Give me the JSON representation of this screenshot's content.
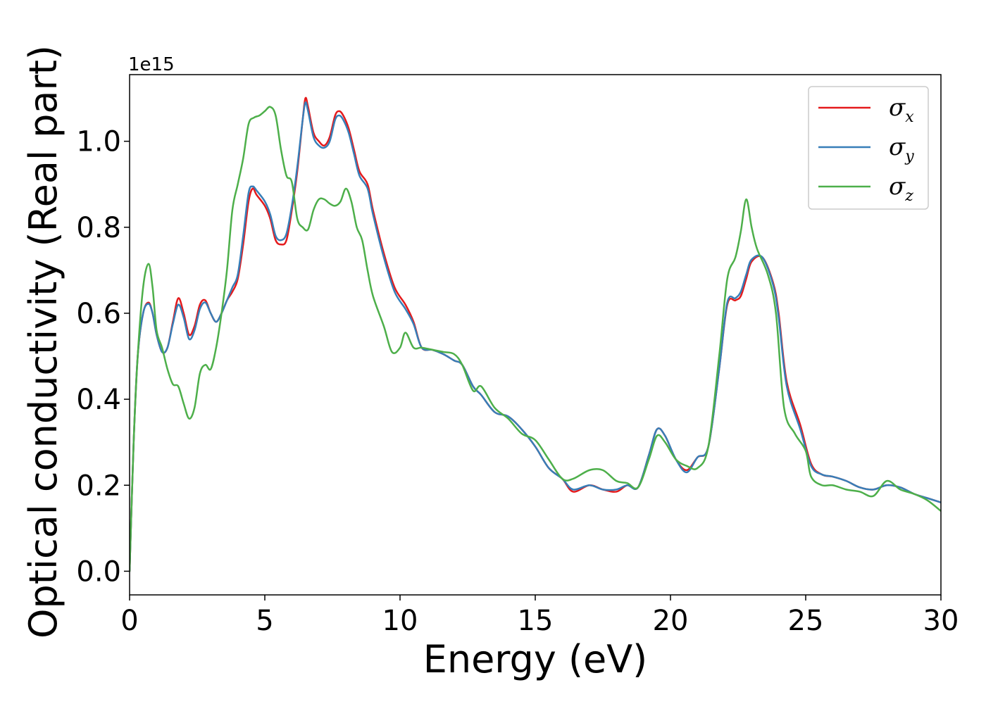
{
  "chart_data": {
    "type": "line",
    "title": "",
    "xlabel": "Energy (eV)",
    "ylabel": "Optical conductivity (Real part)",
    "y_offset_label": "1e15",
    "xlim": [
      0,
      30
    ],
    "ylim": [
      -0.055,
      1.155
    ],
    "x_ticks": [
      0,
      5,
      10,
      15,
      20,
      25,
      30
    ],
    "x_tick_labels": [
      "0",
      "5",
      "10",
      "15",
      "20",
      "25",
      "30"
    ],
    "y_ticks": [
      0.0,
      0.2,
      0.4,
      0.6,
      0.8,
      1.0
    ],
    "y_tick_labels": [
      "0.0",
      "0.2",
      "0.4",
      "0.6",
      "0.8",
      "1.0"
    ],
    "grid": false,
    "legend_position": "top-right",
    "series": [
      {
        "legend_symbol": "σ",
        "legend_subscript": "x",
        "color": "#e41a1c",
        "points": [
          [
            0,
            0
          ],
          [
            0.15,
            0.3
          ],
          [
            0.3,
            0.5
          ],
          [
            0.5,
            0.6
          ],
          [
            0.7,
            0.625
          ],
          [
            0.85,
            0.6
          ],
          [
            1.0,
            0.55
          ],
          [
            1.2,
            0.51
          ],
          [
            1.4,
            0.52
          ],
          [
            1.6,
            0.58
          ],
          [
            1.8,
            0.635
          ],
          [
            2.0,
            0.6
          ],
          [
            2.2,
            0.55
          ],
          [
            2.4,
            0.57
          ],
          [
            2.6,
            0.62
          ],
          [
            2.8,
            0.63
          ],
          [
            3.0,
            0.6
          ],
          [
            3.2,
            0.58
          ],
          [
            3.4,
            0.6
          ],
          [
            3.6,
            0.63
          ],
          [
            3.8,
            0.65
          ],
          [
            4.0,
            0.68
          ],
          [
            4.2,
            0.76
          ],
          [
            4.4,
            0.86
          ],
          [
            4.55,
            0.89
          ],
          [
            4.7,
            0.875
          ],
          [
            5.0,
            0.85
          ],
          [
            5.2,
            0.82
          ],
          [
            5.4,
            0.77
          ],
          [
            5.6,
            0.76
          ],
          [
            5.8,
            0.77
          ],
          [
            6.0,
            0.84
          ],
          [
            6.2,
            0.93
          ],
          [
            6.4,
            1.05
          ],
          [
            6.5,
            1.1
          ],
          [
            6.6,
            1.08
          ],
          [
            6.8,
            1.02
          ],
          [
            7.0,
            1.0
          ],
          [
            7.2,
            0.99
          ],
          [
            7.4,
            1.01
          ],
          [
            7.6,
            1.06
          ],
          [
            7.75,
            1.07
          ],
          [
            7.9,
            1.06
          ],
          [
            8.1,
            1.03
          ],
          [
            8.3,
            0.98
          ],
          [
            8.5,
            0.93
          ],
          [
            8.8,
            0.9
          ],
          [
            9.0,
            0.84
          ],
          [
            9.4,
            0.74
          ],
          [
            9.8,
            0.66
          ],
          [
            10.2,
            0.62
          ],
          [
            10.5,
            0.58
          ],
          [
            10.8,
            0.52
          ],
          [
            11.2,
            0.515
          ],
          [
            11.6,
            0.505
          ],
          [
            12.0,
            0.49
          ],
          [
            12.3,
            0.48
          ],
          [
            12.7,
            0.43
          ],
          [
            13.0,
            0.41
          ],
          [
            13.5,
            0.37
          ],
          [
            14.0,
            0.36
          ],
          [
            14.5,
            0.33
          ],
          [
            15.0,
            0.29
          ],
          [
            15.5,
            0.24
          ],
          [
            16.0,
            0.215
          ],
          [
            16.4,
            0.185
          ],
          [
            17.0,
            0.2
          ],
          [
            17.5,
            0.19
          ],
          [
            18.0,
            0.185
          ],
          [
            18.4,
            0.2
          ],
          [
            18.8,
            0.195
          ],
          [
            19.2,
            0.27
          ],
          [
            19.5,
            0.33
          ],
          [
            19.8,
            0.315
          ],
          [
            20.2,
            0.26
          ],
          [
            20.6,
            0.235
          ],
          [
            21.0,
            0.265
          ],
          [
            21.4,
            0.29
          ],
          [
            21.8,
            0.47
          ],
          [
            22.1,
            0.62
          ],
          [
            22.4,
            0.63
          ],
          [
            22.6,
            0.64
          ],
          [
            22.8,
            0.68
          ],
          [
            23.0,
            0.72
          ],
          [
            23.4,
            0.73
          ],
          [
            23.8,
            0.67
          ],
          [
            24.0,
            0.6
          ],
          [
            24.3,
            0.44
          ],
          [
            24.8,
            0.34
          ],
          [
            25.2,
            0.25
          ],
          [
            25.6,
            0.225
          ],
          [
            26.0,
            0.22
          ],
          [
            26.5,
            0.21
          ],
          [
            27.0,
            0.195
          ],
          [
            27.5,
            0.19
          ],
          [
            28.0,
            0.2
          ],
          [
            28.5,
            0.195
          ],
          [
            29.0,
            0.18
          ],
          [
            29.5,
            0.17
          ],
          [
            30.0,
            0.16
          ]
        ]
      },
      {
        "legend_symbol": "σ",
        "legend_subscript": "y",
        "color": "#377eb8",
        "points": [
          [
            0,
            0
          ],
          [
            0.15,
            0.3
          ],
          [
            0.3,
            0.5
          ],
          [
            0.5,
            0.6
          ],
          [
            0.7,
            0.622
          ],
          [
            0.85,
            0.6
          ],
          [
            1.0,
            0.55
          ],
          [
            1.2,
            0.51
          ],
          [
            1.4,
            0.52
          ],
          [
            1.6,
            0.575
          ],
          [
            1.8,
            0.62
          ],
          [
            2.0,
            0.59
          ],
          [
            2.2,
            0.54
          ],
          [
            2.4,
            0.56
          ],
          [
            2.6,
            0.61
          ],
          [
            2.8,
            0.625
          ],
          [
            3.0,
            0.6
          ],
          [
            3.2,
            0.58
          ],
          [
            3.4,
            0.6
          ],
          [
            3.6,
            0.63
          ],
          [
            3.8,
            0.66
          ],
          [
            4.0,
            0.69
          ],
          [
            4.2,
            0.78
          ],
          [
            4.4,
            0.88
          ],
          [
            4.55,
            0.895
          ],
          [
            4.7,
            0.885
          ],
          [
            5.0,
            0.86
          ],
          [
            5.2,
            0.83
          ],
          [
            5.4,
            0.78
          ],
          [
            5.6,
            0.77
          ],
          [
            5.8,
            0.785
          ],
          [
            6.0,
            0.85
          ],
          [
            6.2,
            0.94
          ],
          [
            6.4,
            1.05
          ],
          [
            6.5,
            1.09
          ],
          [
            6.6,
            1.07
          ],
          [
            6.8,
            1.01
          ],
          [
            7.0,
            0.99
          ],
          [
            7.2,
            0.985
          ],
          [
            7.4,
            1.0
          ],
          [
            7.6,
            1.05
          ],
          [
            7.75,
            1.06
          ],
          [
            7.9,
            1.05
          ],
          [
            8.1,
            1.02
          ],
          [
            8.3,
            0.97
          ],
          [
            8.5,
            0.92
          ],
          [
            8.8,
            0.89
          ],
          [
            9.0,
            0.83
          ],
          [
            9.4,
            0.73
          ],
          [
            9.8,
            0.65
          ],
          [
            10.2,
            0.61
          ],
          [
            10.5,
            0.575
          ],
          [
            10.8,
            0.52
          ],
          [
            11.2,
            0.515
          ],
          [
            11.6,
            0.505
          ],
          [
            12.0,
            0.49
          ],
          [
            12.3,
            0.48
          ],
          [
            12.7,
            0.43
          ],
          [
            13.0,
            0.41
          ],
          [
            13.5,
            0.37
          ],
          [
            14.0,
            0.36
          ],
          [
            14.5,
            0.33
          ],
          [
            15.0,
            0.29
          ],
          [
            15.5,
            0.24
          ],
          [
            16.0,
            0.215
          ],
          [
            16.4,
            0.19
          ],
          [
            17.0,
            0.2
          ],
          [
            17.5,
            0.19
          ],
          [
            18.0,
            0.19
          ],
          [
            18.4,
            0.2
          ],
          [
            18.8,
            0.195
          ],
          [
            19.2,
            0.27
          ],
          [
            19.5,
            0.33
          ],
          [
            19.8,
            0.315
          ],
          [
            20.2,
            0.26
          ],
          [
            20.6,
            0.23
          ],
          [
            21.0,
            0.265
          ],
          [
            21.4,
            0.29
          ],
          [
            21.8,
            0.47
          ],
          [
            22.1,
            0.625
          ],
          [
            22.4,
            0.635
          ],
          [
            22.6,
            0.65
          ],
          [
            22.8,
            0.69
          ],
          [
            23.0,
            0.725
          ],
          [
            23.4,
            0.73
          ],
          [
            23.8,
            0.665
          ],
          [
            24.0,
            0.59
          ],
          [
            24.3,
            0.43
          ],
          [
            24.8,
            0.33
          ],
          [
            25.2,
            0.245
          ],
          [
            25.6,
            0.225
          ],
          [
            26.0,
            0.22
          ],
          [
            26.5,
            0.21
          ],
          [
            27.0,
            0.195
          ],
          [
            27.5,
            0.19
          ],
          [
            28.0,
            0.2
          ],
          [
            28.5,
            0.195
          ],
          [
            29.0,
            0.18
          ],
          [
            29.5,
            0.17
          ],
          [
            30.0,
            0.16
          ]
        ]
      },
      {
        "legend_symbol": "σ",
        "legend_subscript": "z",
        "color": "#4daf4a",
        "points": [
          [
            0,
            0
          ],
          [
            0.15,
            0.3
          ],
          [
            0.3,
            0.5
          ],
          [
            0.5,
            0.66
          ],
          [
            0.7,
            0.715
          ],
          [
            0.85,
            0.66
          ],
          [
            1.0,
            0.56
          ],
          [
            1.2,
            0.52
          ],
          [
            1.4,
            0.47
          ],
          [
            1.6,
            0.435
          ],
          [
            1.8,
            0.43
          ],
          [
            2.0,
            0.39
          ],
          [
            2.2,
            0.355
          ],
          [
            2.4,
            0.38
          ],
          [
            2.6,
            0.46
          ],
          [
            2.8,
            0.48
          ],
          [
            3.0,
            0.47
          ],
          [
            3.2,
            0.52
          ],
          [
            3.4,
            0.6
          ],
          [
            3.6,
            0.7
          ],
          [
            3.8,
            0.84
          ],
          [
            4.0,
            0.9
          ],
          [
            4.2,
            0.96
          ],
          [
            4.4,
            1.04
          ],
          [
            4.6,
            1.055
          ],
          [
            4.8,
            1.06
          ],
          [
            5.0,
            1.07
          ],
          [
            5.2,
            1.08
          ],
          [
            5.4,
            1.06
          ],
          [
            5.6,
            0.98
          ],
          [
            5.8,
            0.92
          ],
          [
            6.0,
            0.905
          ],
          [
            6.2,
            0.82
          ],
          [
            6.4,
            0.8
          ],
          [
            6.6,
            0.795
          ],
          [
            6.8,
            0.84
          ],
          [
            7.0,
            0.865
          ],
          [
            7.2,
            0.865
          ],
          [
            7.4,
            0.855
          ],
          [
            7.6,
            0.85
          ],
          [
            7.8,
            0.86
          ],
          [
            8.0,
            0.89
          ],
          [
            8.2,
            0.86
          ],
          [
            8.4,
            0.8
          ],
          [
            8.6,
            0.77
          ],
          [
            8.8,
            0.7
          ],
          [
            9.0,
            0.64
          ],
          [
            9.4,
            0.57
          ],
          [
            9.7,
            0.51
          ],
          [
            10.0,
            0.52
          ],
          [
            10.2,
            0.555
          ],
          [
            10.5,
            0.52
          ],
          [
            10.8,
            0.52
          ],
          [
            11.2,
            0.515
          ],
          [
            11.6,
            0.51
          ],
          [
            12.0,
            0.505
          ],
          [
            12.3,
            0.48
          ],
          [
            12.7,
            0.42
          ],
          [
            13.0,
            0.43
          ],
          [
            13.5,
            0.38
          ],
          [
            14.0,
            0.355
          ],
          [
            14.5,
            0.32
          ],
          [
            15.0,
            0.305
          ],
          [
            15.5,
            0.26
          ],
          [
            16.0,
            0.215
          ],
          [
            16.4,
            0.215
          ],
          [
            17.0,
            0.235
          ],
          [
            17.5,
            0.235
          ],
          [
            18.0,
            0.21
          ],
          [
            18.4,
            0.205
          ],
          [
            18.8,
            0.195
          ],
          [
            19.2,
            0.26
          ],
          [
            19.5,
            0.315
          ],
          [
            19.8,
            0.3
          ],
          [
            20.2,
            0.26
          ],
          [
            20.6,
            0.245
          ],
          [
            21.0,
            0.24
          ],
          [
            21.4,
            0.29
          ],
          [
            21.8,
            0.5
          ],
          [
            22.1,
            0.68
          ],
          [
            22.4,
            0.73
          ],
          [
            22.6,
            0.79
          ],
          [
            22.8,
            0.865
          ],
          [
            23.0,
            0.8
          ],
          [
            23.2,
            0.75
          ],
          [
            23.6,
            0.69
          ],
          [
            23.9,
            0.6
          ],
          [
            24.2,
            0.38
          ],
          [
            24.6,
            0.32
          ],
          [
            25.0,
            0.28
          ],
          [
            25.2,
            0.22
          ],
          [
            25.6,
            0.2
          ],
          [
            26.0,
            0.2
          ],
          [
            26.5,
            0.19
          ],
          [
            27.0,
            0.185
          ],
          [
            27.5,
            0.175
          ],
          [
            28.0,
            0.21
          ],
          [
            28.5,
            0.19
          ],
          [
            29.0,
            0.18
          ],
          [
            29.5,
            0.165
          ],
          [
            30.0,
            0.14
          ]
        ]
      }
    ]
  }
}
